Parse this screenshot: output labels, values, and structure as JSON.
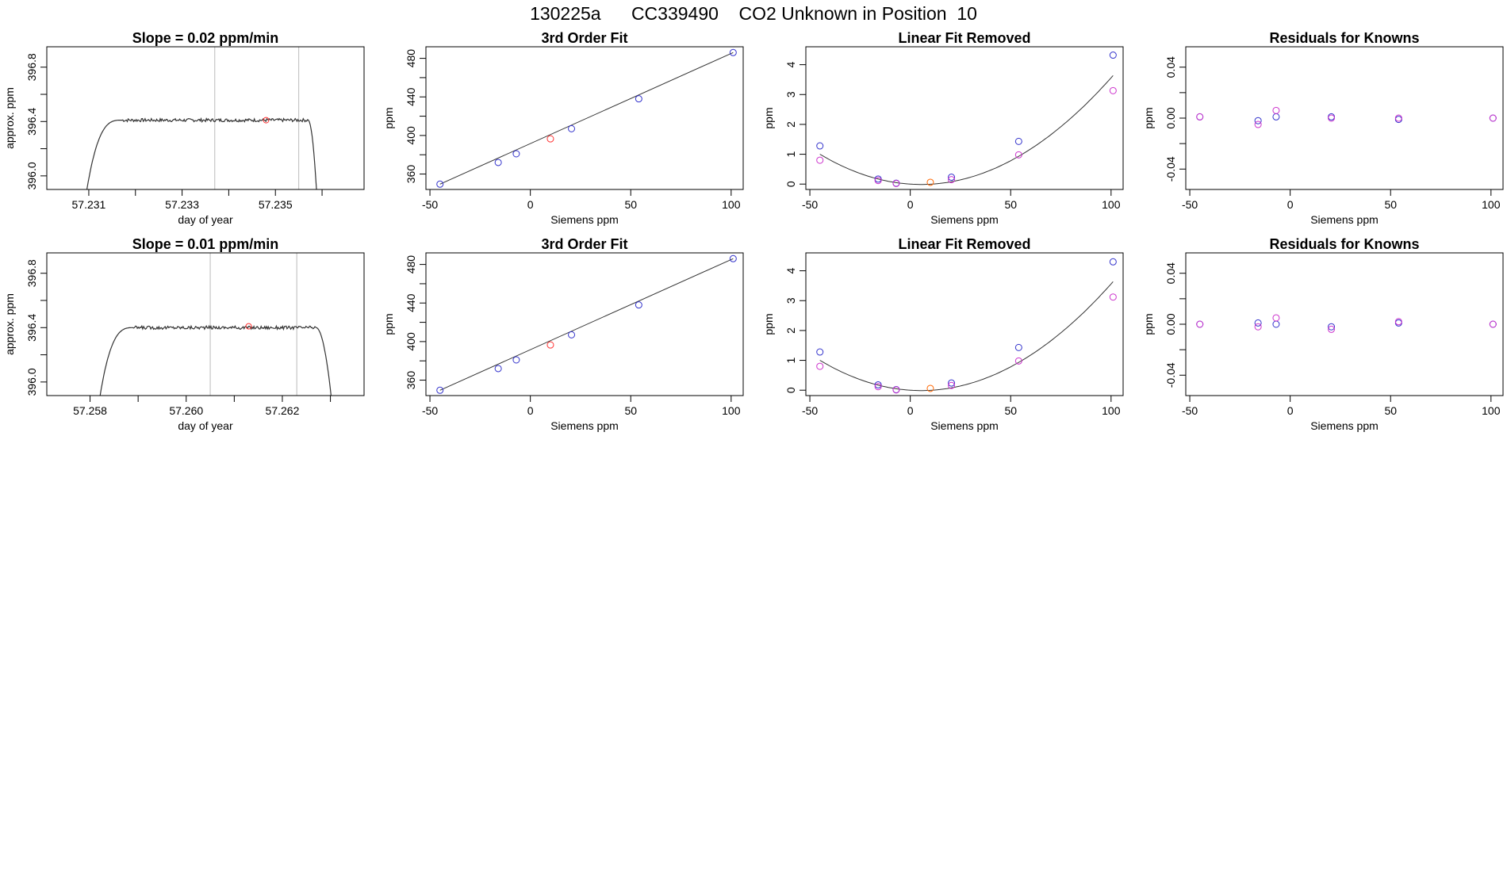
{
  "figure": {
    "title": "130225a      CC339490    CO2 Unknown in Position  10"
  },
  "colors": {
    "axis": "#000000",
    "line": "#333333",
    "known": "#3333cc",
    "unknown": "#ff3333",
    "unknown_orange": "#ff6600",
    "residual_alt": "#cc33cc",
    "window_marker": "#bbbbbb"
  },
  "chart_data": [
    {
      "id": "r1-trace",
      "type": "line",
      "title": "Slope =  0.02  ppm/min",
      "xlabel": "day of year",
      "ylabel": "approx. ppm",
      "xlim": [
        57.2301,
        57.2369
      ],
      "ylim": [
        395.9,
        396.95
      ],
      "xticks": [
        57.231,
        57.232,
        57.233,
        57.234,
        57.235,
        57.236
      ],
      "xtick_labels": [
        "57.231",
        "",
        "57.233",
        "",
        "57.235",
        ""
      ],
      "yticks": [
        396.0,
        396.2,
        396.4,
        396.6,
        396.8
      ],
      "ytick_labels": [
        "396.0",
        "",
        "396.4",
        "",
        "396.8"
      ],
      "vlines": [
        57.2337,
        57.2355
      ],
      "trace": {
        "start": 57.23095,
        "rise_end": 57.2317,
        "plateau_end": 57.2357,
        "end": 57.2359,
        "base": 395.88,
        "level": 396.41,
        "noise": 0.012
      },
      "marker": {
        "x": 57.2348,
        "y": 396.41
      }
    },
    {
      "id": "r1-fit",
      "type": "scatter",
      "title": "3rd Order Fit",
      "xlabel": "Siemens ppm",
      "ylabel": "ppm",
      "xlim": [
        -52,
        106
      ],
      "ylim": [
        344,
        492
      ],
      "xticks": [
        -50,
        0,
        50,
        100
      ],
      "yticks": [
        360,
        380,
        400,
        420,
        440,
        460,
        480
      ],
      "ytick_labels": [
        "360",
        "",
        "400",
        "",
        "440",
        "",
        "480"
      ],
      "fit_line": {
        "x0": -45,
        "y0": 349.5,
        "x1": 101,
        "y1": 486
      },
      "series": [
        {
          "name": "knowns",
          "x": [
            -45,
            -16,
            -7,
            20.5,
            54,
            101
          ],
          "y": [
            349.5,
            372,
            381,
            407,
            438,
            486
          ]
        },
        {
          "name": "unknown",
          "x": [
            10
          ],
          "y": [
            396.5
          ]
        }
      ]
    },
    {
      "id": "r1-linrm",
      "type": "scatter",
      "title": "Linear Fit Removed",
      "xlabel": "Siemens ppm",
      "ylabel": "ppm",
      "xlim": [
        -52,
        106
      ],
      "ylim": [
        -0.18,
        4.6
      ],
      "xticks": [
        -50,
        0,
        50,
        100
      ],
      "yticks": [
        0,
        1,
        2,
        3,
        4
      ],
      "curve": {
        "a": 0.000399,
        "b": -0.0043,
        "c": 0.0
      },
      "series": [
        {
          "name": "knowns",
          "x": [
            -45,
            -16,
            -7,
            20.5,
            54,
            101
          ],
          "y": [
            1.28,
            0.17,
            0.03,
            0.23,
            1.43,
            4.32
          ]
        },
        {
          "name": "alt",
          "x": [
            -45,
            -16,
            -7,
            20.5,
            54,
            101
          ],
          "y": [
            0.8,
            0.12,
            0.02,
            0.15,
            0.98,
            3.13
          ]
        },
        {
          "name": "unknown",
          "x": [
            10
          ],
          "y": [
            0.06
          ]
        }
      ]
    },
    {
      "id": "r1-resid",
      "type": "scatter",
      "title": "Residuals for Knowns",
      "xlabel": "Siemens ppm",
      "ylabel": "ppm",
      "xlim": [
        -52,
        106
      ],
      "ylim": [
        -0.056,
        0.056
      ],
      "xticks": [
        -50,
        0,
        50,
        100
      ],
      "yticks": [
        -0.04,
        -0.02,
        0.0,
        0.02,
        0.04
      ],
      "ytick_labels": [
        "-0.04",
        "",
        "0.00",
        "",
        "0.04"
      ],
      "series": [
        {
          "name": "knowns",
          "x": [
            -45,
            -16,
            -7,
            20.5,
            54,
            101
          ],
          "y": [
            0.001,
            -0.002,
            0.001,
            0.001,
            -0.001,
            0.0
          ]
        },
        {
          "name": "alt",
          "x": [
            -45,
            -16,
            -7,
            20.5,
            54,
            101
          ],
          "y": [
            0.001,
            -0.005,
            0.006,
            0.0,
            0.0,
            0.0
          ]
        }
      ]
    },
    {
      "id": "r2-trace",
      "type": "line",
      "title": "Slope =  0.01  ppm/min",
      "xlabel": "day of year",
      "ylabel": "approx. ppm",
      "xlim": [
        57.2571,
        57.2637
      ],
      "ylim": [
        395.9,
        396.95
      ],
      "xticks": [
        57.258,
        57.259,
        57.26,
        57.261,
        57.262,
        57.263
      ],
      "xtick_labels": [
        "57.258",
        "",
        "57.260",
        "",
        "57.262",
        ""
      ],
      "yticks": [
        396.0,
        396.2,
        396.4,
        396.6,
        396.8
      ],
      "ytick_labels": [
        "396.0",
        "",
        "396.4",
        "",
        "396.8"
      ],
      "vlines": [
        57.2605,
        57.2623
      ],
      "trace": {
        "start": 57.2582,
        "rise_end": 57.2589,
        "plateau_end": 57.2627,
        "end": 57.26305,
        "base": 395.88,
        "level": 396.4,
        "noise": 0.012
      },
      "marker": {
        "x": 57.2613,
        "y": 396.41
      }
    },
    {
      "id": "r2-fit",
      "type": "scatter",
      "title": "3rd Order Fit",
      "xlabel": "Siemens ppm",
      "ylabel": "ppm",
      "xlim": [
        -52,
        106
      ],
      "ylim": [
        344,
        492
      ],
      "xticks": [
        -50,
        0,
        50,
        100
      ],
      "yticks": [
        360,
        380,
        400,
        420,
        440,
        460,
        480
      ],
      "ytick_labels": [
        "360",
        "",
        "400",
        "",
        "440",
        "",
        "480"
      ],
      "fit_line": {
        "x0": -45,
        "y0": 349.5,
        "x1": 101,
        "y1": 486
      },
      "series": [
        {
          "name": "knowns",
          "x": [
            -45,
            -16,
            -7,
            20.5,
            54,
            101
          ],
          "y": [
            349.5,
            372,
            381,
            407,
            438,
            486
          ]
        },
        {
          "name": "unknown",
          "x": [
            10
          ],
          "y": [
            396.5
          ]
        }
      ]
    },
    {
      "id": "r2-linrm",
      "type": "scatter",
      "title": "Linear Fit Removed",
      "xlabel": "Siemens ppm",
      "ylabel": "ppm",
      "xlim": [
        -52,
        106
      ],
      "ylim": [
        -0.18,
        4.6
      ],
      "xticks": [
        -50,
        0,
        50,
        100
      ],
      "yticks": [
        0,
        1,
        2,
        3,
        4
      ],
      "curve": {
        "a": 0.000399,
        "b": -0.0043,
        "c": 0.0
      },
      "series": [
        {
          "name": "knowns",
          "x": [
            -45,
            -16,
            -7,
            20.5,
            54,
            101
          ],
          "y": [
            1.28,
            0.18,
            0.02,
            0.24,
            1.43,
            4.3
          ]
        },
        {
          "name": "alt",
          "x": [
            -45,
            -16,
            -7,
            20.5,
            54,
            101
          ],
          "y": [
            0.8,
            0.12,
            0.01,
            0.16,
            0.98,
            3.12
          ]
        },
        {
          "name": "unknown",
          "x": [
            10
          ],
          "y": [
            0.06
          ]
        }
      ]
    },
    {
      "id": "r2-resid",
      "type": "scatter",
      "title": "Residuals for Knowns",
      "xlabel": "Siemens ppm",
      "ylabel": "ppm",
      "xlim": [
        -52,
        106
      ],
      "ylim": [
        -0.056,
        0.056
      ],
      "xticks": [
        -50,
        0,
        50,
        100
      ],
      "yticks": [
        -0.04,
        -0.02,
        0.0,
        0.02,
        0.04
      ],
      "ytick_labels": [
        "-0.04",
        "",
        "0.00",
        "",
        "0.04"
      ],
      "series": [
        {
          "name": "knowns",
          "x": [
            -45,
            -16,
            -7,
            20.5,
            54,
            101
          ],
          "y": [
            0.0,
            0.001,
            0.0,
            -0.002,
            0.001,
            0.0
          ]
        },
        {
          "name": "alt",
          "x": [
            -45,
            -16,
            -7,
            20.5,
            54,
            101
          ],
          "y": [
            0.0,
            -0.002,
            0.005,
            -0.004,
            0.002,
            0.0
          ]
        }
      ]
    }
  ]
}
